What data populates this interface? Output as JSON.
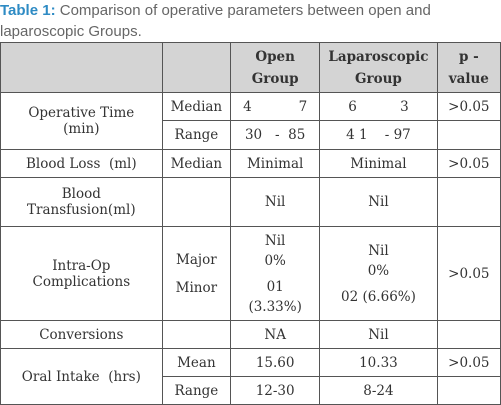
{
  "caption": {
    "label": "Table 1:",
    "text": " Comparison of operative parameters between open and laparoscopic Groups."
  },
  "headers": {
    "open_l1": "Open",
    "open_l2": "Group",
    "lap_l1": "Laparoscopic",
    "lap_l2": "Group",
    "p_l1": "p -",
    "p_l2": "value"
  },
  "rows": {
    "operative_time": {
      "label_l1": "Operative Time",
      "label_l2": "(min)",
      "median": "Median",
      "open_median_a": "4",
      "open_median_b": "7",
      "lap_median_a": "6",
      "lap_median_b": "3",
      "range": "Range",
      "open_range": "30   -  85",
      "lap_range": "4 1    - 97",
      "p": ">0.05"
    },
    "blood_loss": {
      "label": "Blood Loss  (ml)",
      "stat": "Median",
      "open": "Minimal",
      "lap": "Minimal",
      "p": ">0.05"
    },
    "blood_transfusion": {
      "label_l1": "Blood",
      "label_l2": "Transfusion(ml)",
      "open": "Nil",
      "lap": "Nil"
    },
    "complications": {
      "label_l1": "Intra-Op",
      "label_l2": "Complications",
      "major": "Major",
      "minor": "Minor",
      "open_major_l1": "Nil",
      "open_major_l2": "0%",
      "open_minor_l1": "01",
      "open_minor_l2": "(3.33%)",
      "lap_major_l1": "Nil",
      "lap_major_l2": "0%",
      "lap_minor": "02 (6.66%)",
      "p": ">0.05"
    },
    "conversions": {
      "label": "Conversions",
      "open": "NA",
      "lap": "Nil"
    },
    "oral_intake": {
      "label": "Oral Intake  (hrs)",
      "mean": "Mean",
      "open_mean": "15.60",
      "lap_mean": "10.33",
      "p": ">0.05",
      "range": "Range",
      "open_range": "12-30",
      "lap_range": "8-24"
    }
  }
}
